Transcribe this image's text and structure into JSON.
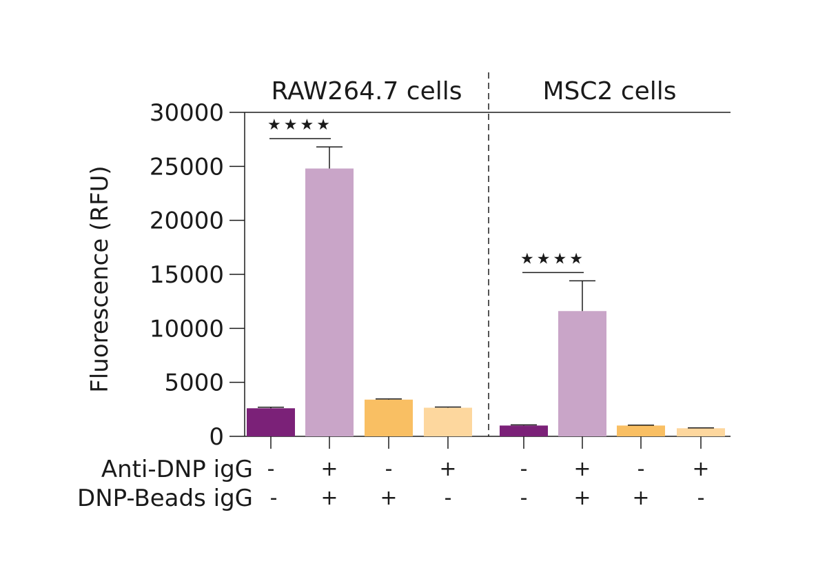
{
  "chart_data": {
    "type": "bar",
    "ylabel": "Fluorescence (RFU)",
    "ylim": [
      0,
      30000
    ],
    "yticks": [
      "0",
      "5000",
      "10000",
      "15000",
      "20000",
      "25000",
      "30000"
    ],
    "grid": false,
    "groups": [
      {
        "title": "RAW264.7 cells",
        "bars": [
          {
            "value": 2600,
            "error": 100,
            "color": "#7b2178"
          },
          {
            "value": 24800,
            "error": 2000,
            "color": "#c9a5c8"
          },
          {
            "value": 3400,
            "error": 60,
            "color": "#f9bf63"
          },
          {
            "value": 2650,
            "error": 60,
            "color": "#fdd79e"
          }
        ],
        "significance": {
          "label": "★★★★",
          "between": [
            0,
            1
          ]
        }
      },
      {
        "title": "MSC2 cells",
        "bars": [
          {
            "value": 1000,
            "error": 60,
            "color": "#7b2178"
          },
          {
            "value": 11600,
            "error": 2800,
            "color": "#c9a5c8"
          },
          {
            "value": 1000,
            "error": 40,
            "color": "#f9bf63"
          },
          {
            "value": 750,
            "error": 30,
            "color": "#fdd79e"
          }
        ],
        "significance": {
          "label": "★★★★",
          "between": [
            0,
            1
          ]
        }
      }
    ],
    "conditions": [
      {
        "label": "Anti-DNP igG",
        "values": [
          "-",
          "+",
          "-",
          "+",
          "-",
          "+",
          "-",
          "+"
        ]
      },
      {
        "label": "DNP-Beads igG",
        "values": [
          "-",
          "+",
          "+",
          "-",
          "-",
          "+",
          "+",
          "-"
        ]
      }
    ]
  }
}
